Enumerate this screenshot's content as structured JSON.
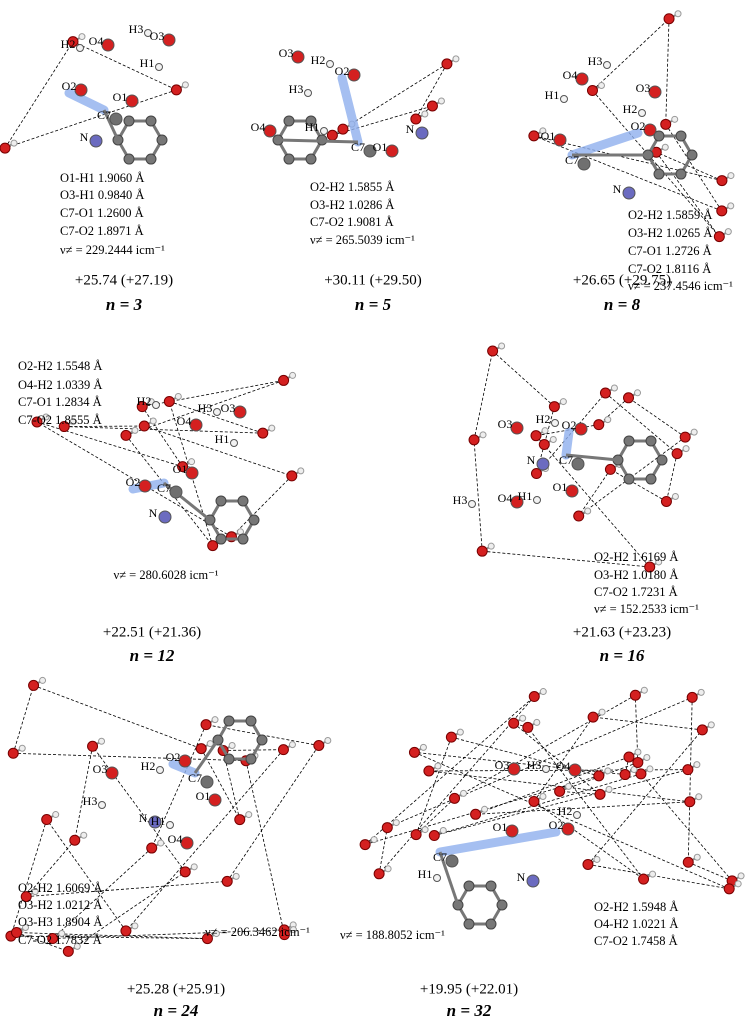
{
  "panels": [
    {
      "atoms": [
        "H2",
        "O4",
        "H3",
        "O3",
        "H1",
        "O2",
        "O1",
        "C7",
        "N"
      ],
      "measurements": [
        "O1-H1 1.9060 Å",
        "O3-H1 0.9840 Å",
        "C7-O1   1.2600 Å",
        "C7-O2   1.8971 Å"
      ],
      "frequency": "ν≠ = 229.2444 icm⁻¹",
      "energy": "+25.74 (+27.19)",
      "n_label": "n = 3"
    },
    {
      "atoms": [
        "O3",
        "H2",
        "O2",
        "H3",
        "O4",
        "H1",
        "C7",
        "O1",
        "N"
      ],
      "measurements": [
        "O2-H2 1.5855 Å",
        "O3-H2 1.0286 Å",
        "C7-O2  1.9081 Å"
      ],
      "frequency": "ν≠ = 265.5039 icm⁻¹",
      "energy": "+30.11 (+29.50)",
      "n_label": "n = 5"
    },
    {
      "atoms": [
        "O4",
        "H3",
        "H1",
        "O3",
        "H2",
        "O1",
        "O2",
        "C7",
        "N"
      ],
      "measurements": [
        "O2-H2 1.5859 Å",
        "O3-H2 1.0265 Å",
        "C7-O1   1.2726 Å",
        "C7-O2   1.8116 Å"
      ],
      "frequency": "ν≠ = 237.4546 icm⁻¹",
      "energy": "+26.65 (+29.75)",
      "n_label": "n = 8"
    },
    {
      "atoms": [
        "H2",
        "H3",
        "O3",
        "O4",
        "H1",
        "O2",
        "O1",
        "C7",
        "N"
      ],
      "measurements": [
        "O2-H2 1.5548 Å",
        "O4-H2 1.0339 Å",
        "C7-O1   1.2834 Å",
        "C7-O2   1.8555 Å"
      ],
      "frequency": "ν≠ = 280.6028 icm⁻¹",
      "energy": "+22.51 (+21.36)",
      "n_label": "n = 12"
    },
    {
      "atoms": [
        "O3",
        "H2",
        "O2",
        "N",
        "C7",
        "H3",
        "O4",
        "H1",
        "O1"
      ],
      "measurements": [
        "O2-H2 1.6169 Å",
        "O3-H2 1.0180 Å",
        "C7-O2 1.7231 Å"
      ],
      "frequency": "ν≠ = 152.2533 icm⁻¹",
      "energy": "+21.63 (+23.23)",
      "n_label": "n = 16"
    },
    {
      "atoms": [
        "O3",
        "H2",
        "O2",
        "C7",
        "H3",
        "O1",
        "N",
        "H1",
        "O4"
      ],
      "measurements": [
        "O2-H2 1.6069 Å",
        "O3-H2 1.0212 Å",
        "O3-H3 1.8904 Å",
        "C7-O2 1.7832 Å"
      ],
      "frequency": "ν≠ = 206.3462 icm⁻¹",
      "energy": "+25.28 (+25.91)",
      "n_label": "n = 24"
    },
    {
      "atoms": [
        "O3",
        "H3",
        "O4",
        "H2",
        "O2",
        "O1",
        "C7",
        "H1",
        "N"
      ],
      "measurements": [
        "O2-H2 1.5948 Å",
        "O4-H2 1.0221 Å",
        "C7-O2 1.7458 Å"
      ],
      "frequency": "ν≠ = 188.8052 icm⁻¹",
      "energy": "+19.95 (+22.01)",
      "n_label": "n = 32"
    }
  ]
}
